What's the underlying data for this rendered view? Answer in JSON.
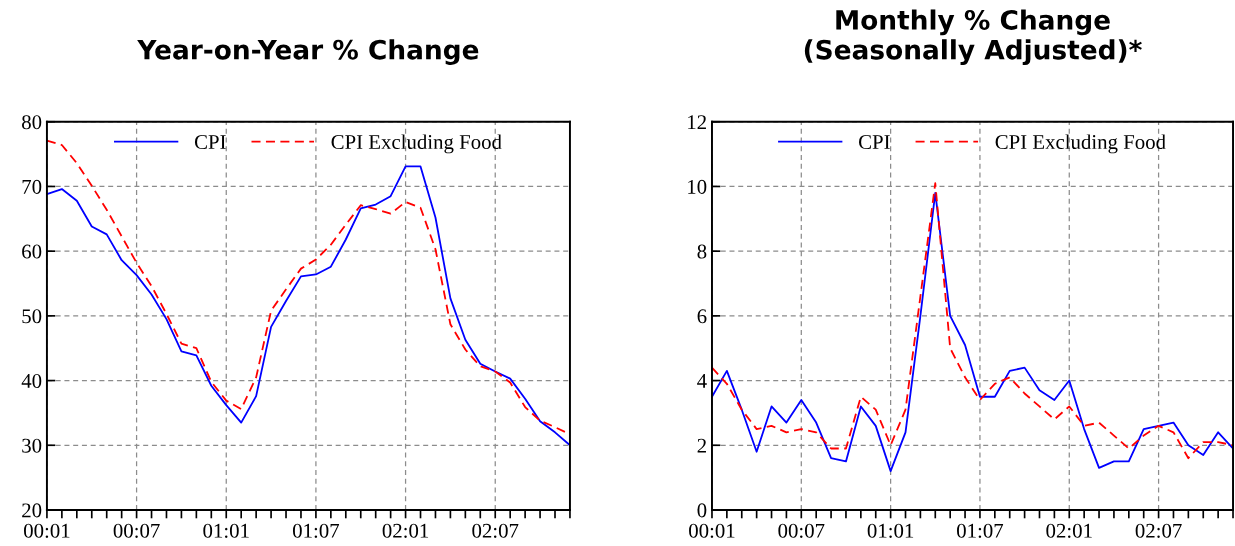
{
  "chart_data": [
    {
      "type": "line",
      "title": "Year-on-Year % Change",
      "categories": [
        "00:01",
        null,
        null,
        null,
        null,
        null,
        "00:07",
        null,
        null,
        null,
        null,
        null,
        "01:01",
        null,
        null,
        null,
        null,
        null,
        "01:07",
        null,
        null,
        null,
        null,
        null,
        "02:01",
        null,
        null,
        null,
        null,
        null,
        "02:07",
        null,
        null,
        null,
        null,
        null
      ],
      "series": [
        {
          "name": "CPI",
          "color": "#0000ff",
          "line_style": "solid",
          "values": [
            68.8,
            69.6,
            67.8,
            63.8,
            62.6,
            58.6,
            56.3,
            53.3,
            49.5,
            44.5,
            43.9,
            39.2,
            36.2,
            33.5,
            37.6,
            48.3,
            52.3,
            56.1,
            56.4,
            57.6,
            61.8,
            66.6,
            67.2,
            68.5,
            73.1,
            73.1,
            65.2,
            52.7,
            46.3,
            42.6,
            41.4,
            40.3,
            37.2,
            33.7,
            32.0,
            30.0
          ]
        },
        {
          "name": "CPI Excluding Food",
          "color": "#ff0000",
          "line_style": "dashed",
          "values": [
            77.1,
            76.4,
            73.6,
            70.1,
            66.4,
            62.3,
            58.2,
            54.6,
            50.3,
            45.7,
            45.0,
            39.8,
            36.9,
            35.6,
            40.5,
            50.8,
            54.1,
            57.3,
            58.7,
            61.0,
            64.1,
            67.1,
            66.5,
            65.8,
            67.6,
            66.7,
            60.3,
            48.7,
            44.8,
            42.2,
            41.4,
            39.7,
            35.9,
            33.8,
            32.8,
            31.7
          ]
        }
      ],
      "ylim": [
        20,
        80
      ],
      "yticks": [
        20,
        30,
        40,
        50,
        60,
        70,
        80
      ],
      "grid": true,
      "legend": "top"
    },
    {
      "type": "line",
      "title": "Monthly % Change\n(Seasonally Adjusted)*",
      "categories": [
        "00:01",
        null,
        null,
        null,
        null,
        null,
        "00:07",
        null,
        null,
        null,
        null,
        null,
        "01:01",
        null,
        null,
        null,
        null,
        null,
        "01:07",
        null,
        null,
        null,
        null,
        null,
        "02:01",
        null,
        null,
        null,
        null,
        null,
        "02:07",
        null,
        null,
        null,
        null,
        null
      ],
      "series": [
        {
          "name": "CPI",
          "color": "#0000ff",
          "line_style": "solid",
          "values": [
            3.5,
            4.3,
            3.1,
            1.8,
            3.2,
            2.7,
            3.4,
            2.7,
            1.6,
            1.5,
            3.2,
            2.6,
            1.2,
            2.4,
            6.0,
            9.8,
            6.0,
            5.1,
            3.5,
            3.5,
            4.3,
            4.4,
            3.7,
            3.4,
            4.0,
            2.5,
            1.3,
            1.5,
            1.5,
            2.5,
            2.6,
            2.7,
            2.0,
            1.7,
            2.4,
            1.9
          ]
        },
        {
          "name": "CPI Excluding Food",
          "color": "#ff0000",
          "line_style": "dashed",
          "values": [
            4.4,
            3.9,
            3.1,
            2.5,
            2.6,
            2.4,
            2.5,
            2.4,
            1.9,
            1.9,
            3.5,
            3.1,
            2.0,
            3.1,
            6.6,
            10.1,
            5.0,
            4.1,
            3.4,
            3.9,
            4.1,
            3.6,
            3.2,
            2.8,
            3.2,
            2.6,
            2.7,
            2.3,
            1.9,
            2.3,
            2.6,
            2.4,
            1.6,
            2.1,
            2.1,
            2.0
          ]
        }
      ],
      "ylim": [
        0,
        12
      ],
      "yticks": [
        0,
        2,
        4,
        6,
        8,
        10,
        12
      ],
      "grid": true,
      "legend": "top"
    }
  ]
}
